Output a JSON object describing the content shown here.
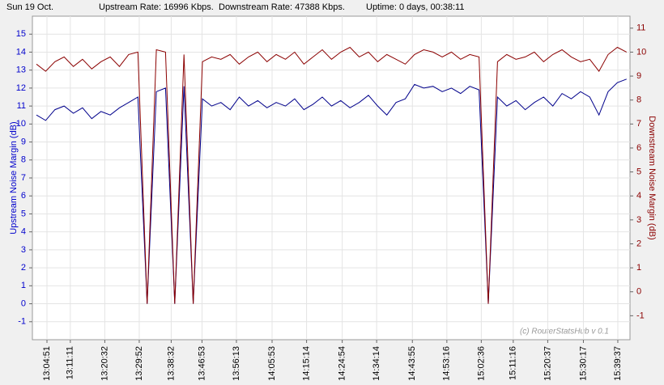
{
  "header": {
    "date": "Sun 19 Oct.",
    "upstream_rate": "Upstream Rate: 16996 Kbps.",
    "downstream_rate": "Downstream Rate: 47388 Kbps.",
    "uptime": "Uptime: 0 days, 00:38:11"
  },
  "chart_data": {
    "type": "line",
    "ylabel": "Upstream Noise Margin (dB)",
    "y2label": "Downstream Noise Margin (dB)",
    "watermark": "(c) RouterStatsHub v 0.1",
    "grid": true,
    "xlim": [
      "13:00:54",
      "15:42:55"
    ],
    "xticks": [
      "13:04:51",
      "13:11:11",
      "13:20:32",
      "13:29:52",
      "13:38:32",
      "13:46:53",
      "13:56:13",
      "14:05:53",
      "14:15:14",
      "14:24:54",
      "14:34:14",
      "14:43:55",
      "14:53:16",
      "15:02:36",
      "15:11:16",
      "15:20:37",
      "15:30:17",
      "15:39:37"
    ],
    "ylim": [
      -2,
      16
    ],
    "yticks": [
      -1,
      0,
      1,
      2,
      3,
      4,
      5,
      6,
      7,
      8,
      9,
      10,
      11,
      12,
      13,
      14,
      15
    ],
    "y2lim": [
      -2,
      11.5
    ],
    "y2ticks": [
      -1,
      0,
      1,
      2,
      3,
      4,
      5,
      6,
      7,
      8,
      9,
      10,
      11
    ],
    "x": [
      "13:02:00",
      "13:04:30",
      "13:07:00",
      "13:09:30",
      "13:12:00",
      "13:14:30",
      "13:17:00",
      "13:19:30",
      "13:22:00",
      "13:24:30",
      "13:27:00",
      "13:29:30",
      "13:32:00",
      "13:34:30",
      "13:37:00",
      "13:39:30",
      "13:42:00",
      "13:44:30",
      "13:47:00",
      "13:49:30",
      "13:52:00",
      "13:54:30",
      "13:57:00",
      "13:59:30",
      "14:02:00",
      "14:04:30",
      "14:07:00",
      "14:09:30",
      "14:12:00",
      "14:14:30",
      "14:17:00",
      "14:19:30",
      "14:22:00",
      "14:24:30",
      "14:27:00",
      "14:29:30",
      "14:32:00",
      "14:34:30",
      "14:37:00",
      "14:39:30",
      "14:42:00",
      "14:44:30",
      "14:47:00",
      "14:49:30",
      "14:52:00",
      "14:54:30",
      "14:57:00",
      "14:59:30",
      "15:02:00",
      "15:04:30",
      "15:07:00",
      "15:09:30",
      "15:12:00",
      "15:14:30",
      "15:17:00",
      "15:19:30",
      "15:22:00",
      "15:24:30",
      "15:27:00",
      "15:29:30",
      "15:32:00",
      "15:34:30",
      "15:37:00",
      "15:39:30",
      "15:42:00"
    ],
    "series": [
      {
        "color": "#00008b",
        "axis": "y",
        "values": [
          10.5,
          10.2,
          10.8,
          11,
          10.6,
          10.9,
          10.3,
          10.7,
          10.5,
          10.9,
          11.2,
          11.5,
          0,
          11.8,
          12,
          0,
          12.1,
          0,
          11.4,
          11,
          11.2,
          10.8,
          11.5,
          11,
          11.3,
          10.9,
          11.2,
          11,
          11.4,
          10.8,
          11.1,
          11.5,
          11,
          11.3,
          10.9,
          11.2,
          11.6,
          11,
          10.5,
          11.2,
          11.4,
          12.2,
          12,
          12.1,
          11.8,
          12,
          11.7,
          12.1,
          11.9,
          0,
          11.5,
          11,
          11.3,
          10.8,
          11.2,
          11.5,
          11,
          11.7,
          11.4,
          11.8,
          11.5,
          10.5,
          11.8,
          12.3,
          12.5
        ]
      },
      {
        "color": "#8b0000",
        "axis": "y2",
        "values": [
          9.5,
          9.2,
          9.6,
          9.8,
          9.4,
          9.7,
          9.3,
          9.6,
          9.8,
          9.4,
          9.9,
          10,
          -0.5,
          10.1,
          10,
          -0.5,
          9.9,
          -0.5,
          9.6,
          9.8,
          9.7,
          9.9,
          9.5,
          9.8,
          10,
          9.6,
          9.9,
          9.7,
          10,
          9.5,
          9.8,
          10.1,
          9.7,
          10,
          10.2,
          9.8,
          10,
          9.6,
          9.9,
          9.7,
          9.5,
          9.9,
          10.1,
          10,
          9.8,
          10,
          9.7,
          9.9,
          9.8,
          -0.5,
          9.6,
          9.9,
          9.7,
          9.8,
          10,
          9.6,
          9.9,
          10.1,
          9.8,
          9.6,
          9.7,
          9.2,
          9.9,
          10.2,
          10
        ]
      }
    ]
  }
}
